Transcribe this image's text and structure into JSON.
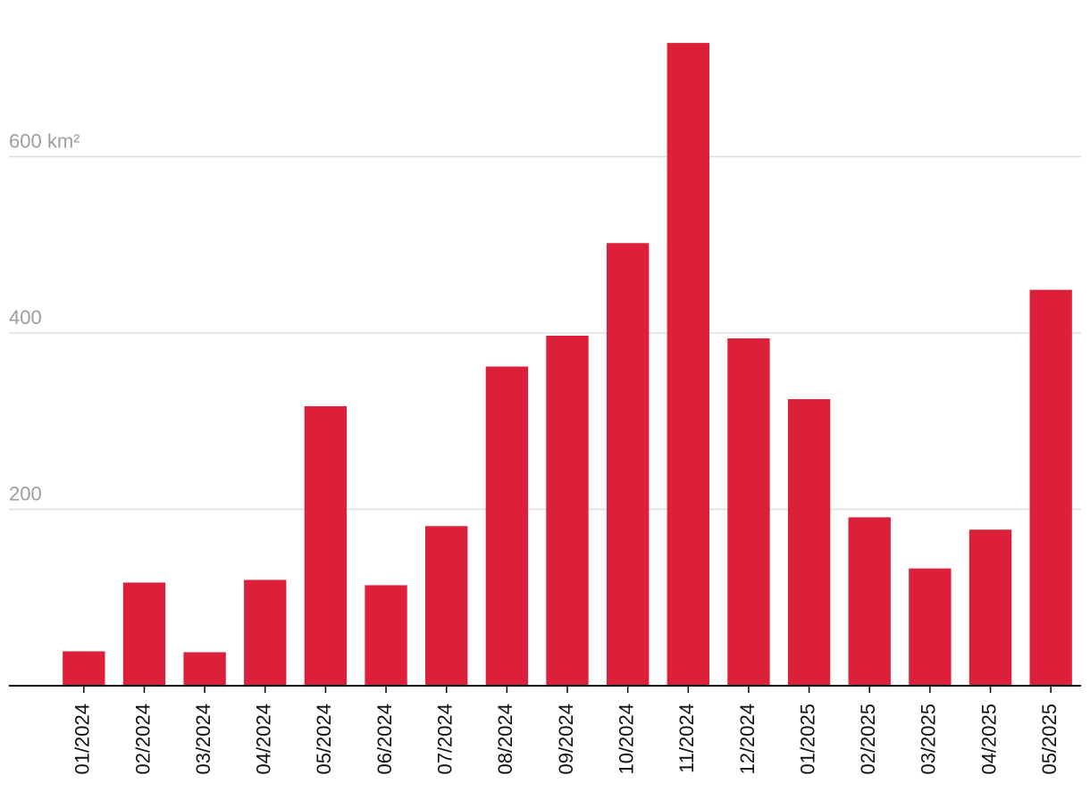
{
  "chart_data": {
    "type": "bar",
    "categories": [
      "01/2024",
      "02/2024",
      "03/2024",
      "04/2024",
      "05/2024",
      "06/2024",
      "07/2024",
      "08/2024",
      "09/2024",
      "10/2024",
      "11/2024",
      "12/2024",
      "01/2025",
      "02/2025",
      "03/2025",
      "04/2025",
      "05/2025"
    ],
    "values": [
      39,
      117,
      38,
      120,
      317,
      114,
      181,
      362,
      397,
      502,
      729,
      394,
      325,
      191,
      133,
      177,
      449
    ],
    "color": "#dc2039",
    "ylim": [
      0,
      760
    ],
    "yticks": [
      200,
      400,
      {
        "value": 600,
        "label": "600 km²"
      }
    ],
    "grid": true
  }
}
